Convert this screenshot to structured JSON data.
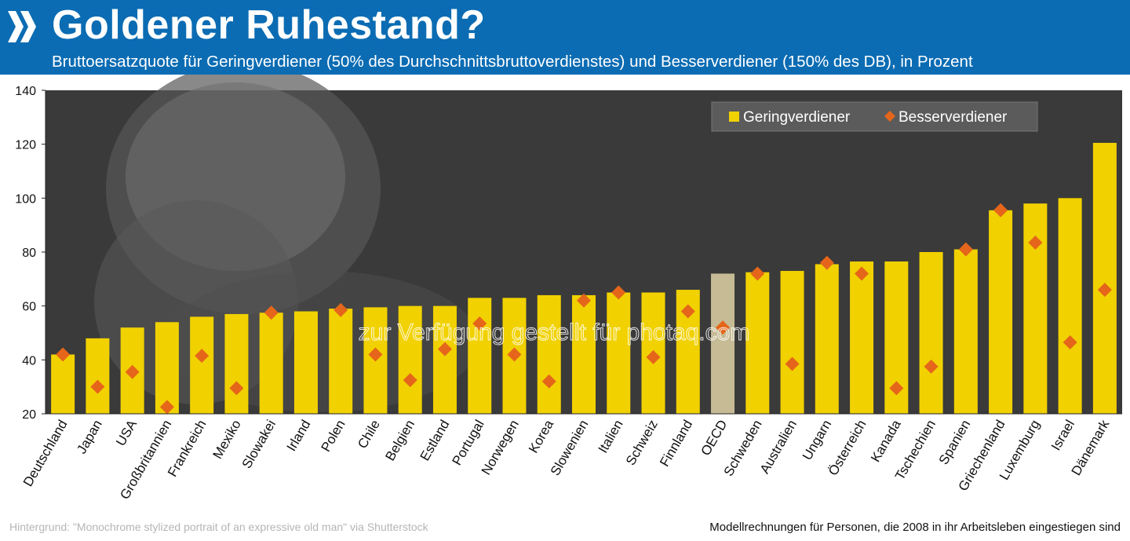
{
  "header": {
    "title": "Goldener Ruhestand?",
    "subtitle": "Bruttoersatzquote für Geringverdiener (50% des Durchschnittsbruttoverdienstes) und Besserverdiener (150% des DB), in Prozent",
    "logo_icon": "oecd-chevrons-logo-icon",
    "background_color": "#0b6cb3"
  },
  "watermark": "zur Verfügung gestellt für photaq.com",
  "footer": {
    "credit": "Hintergrund: \"Monochrome stylized portrait of an expressive old man\" via Shutterstock",
    "note": "Modellrechnungen für Personen, die 2008 in ihr Arbeitsleben eingestiegen sind"
  },
  "chart_data": {
    "type": "bar",
    "categories": [
      "Deutschland",
      "Japan",
      "USA",
      "Großbritannien",
      "Frankreich",
      "Mexiko",
      "Slowakei",
      "Irland",
      "Polen",
      "Chile",
      "Belgien",
      "Estland",
      "Portugal",
      "Norwegen",
      "Korea",
      "Slowenien",
      "Italien",
      "Schweiz",
      "Finnland",
      "OECD",
      "Schweden",
      "Australien",
      "Ungarn",
      "Österreich",
      "Kanada",
      "Tschechien",
      "Spanien",
      "Griechenland",
      "Luxemburg",
      "Israel",
      "Dänemark"
    ],
    "series": [
      {
        "name": "Geringverdiener",
        "marker": "bar",
        "color": "#f1d100",
        "values": [
          42,
          48,
          52,
          54,
          56,
          57,
          57.5,
          58,
          59,
          59.5,
          60,
          60,
          63,
          63,
          64,
          64,
          65,
          65,
          66,
          72,
          72.5,
          73,
          75.5,
          76.5,
          76.5,
          80,
          81,
          95.5,
          98,
          100,
          120.5
        ]
      },
      {
        "name": "Besserverdiener",
        "marker": "diamond",
        "color": "#e5661a",
        "values": [
          42,
          30,
          35.5,
          22.5,
          41.5,
          29.5,
          57.5,
          null,
          58.5,
          42,
          32.5,
          44,
          53.5,
          42,
          32,
          62,
          65,
          41,
          58,
          52,
          72,
          38.5,
          76,
          72,
          29.5,
          37.5,
          81,
          95.5,
          83.5,
          46.5,
          66
        ]
      }
    ],
    "highlight": {
      "category": "OECD",
      "color": "#c6bb95"
    },
    "ylim": [
      20,
      140
    ],
    "yticks": [
      20,
      40,
      60,
      80,
      100,
      120,
      140
    ],
    "grid": false,
    "legend": "top-right",
    "plot_background": "#3a3a3a"
  }
}
